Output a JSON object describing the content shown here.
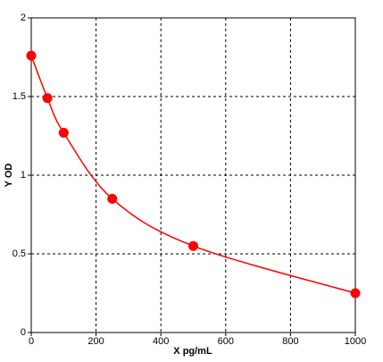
{
  "chart_data": {
    "type": "scatter",
    "x_label": "X pg/mL",
    "y_label": "Y OD",
    "x": [
      0,
      50,
      100,
      250,
      500,
      1000
    ],
    "series": [
      {
        "name": "Y OD",
        "color": "#ff0000",
        "values": [
          1.76,
          1.49,
          1.27,
          0.85,
          0.55,
          0.25
        ]
      }
    ],
    "xlim": [
      0,
      1000
    ],
    "xticks": [
      0,
      200,
      400,
      600,
      800,
      1000
    ],
    "ylim": [
      0,
      2
    ],
    "yticks": [
      0,
      0.5,
      1,
      1.5,
      2
    ],
    "grid": true,
    "line": "smooth"
  }
}
